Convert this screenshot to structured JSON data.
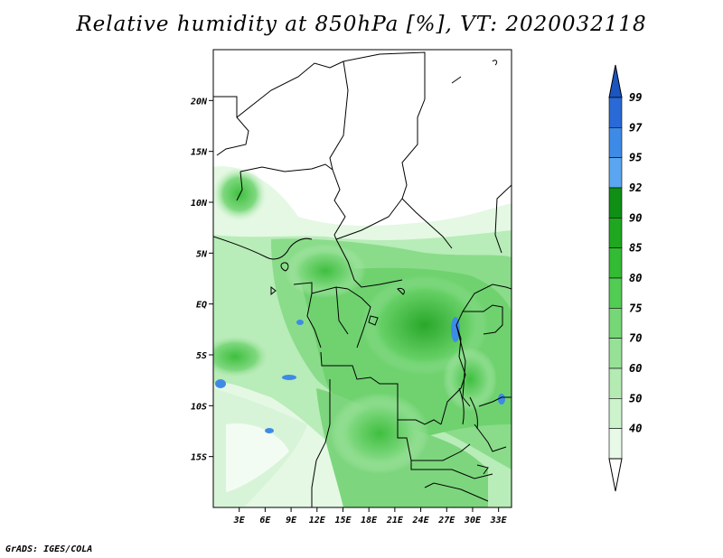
{
  "title": "Relative humidity at 850hPa [%], VT: 2020032118",
  "footer": "GrADS: IGES/COLA",
  "map": {
    "lon_range": [
      0,
      34.5
    ],
    "lat_range": [
      -20,
      25
    ],
    "lat_ticks": [
      {
        "label": "20N",
        "value": 20
      },
      {
        "label": "15N",
        "value": 15
      },
      {
        "label": "10N",
        "value": 10
      },
      {
        "label": "5N",
        "value": 5
      },
      {
        "label": "EQ",
        "value": 0
      },
      {
        "label": "5S",
        "value": -5
      },
      {
        "label": "10S",
        "value": -10
      },
      {
        "label": "15S",
        "value": -15
      }
    ],
    "lon_ticks": [
      {
        "label": "3E",
        "value": 3
      },
      {
        "label": "6E",
        "value": 6
      },
      {
        "label": "9E",
        "value": 9
      },
      {
        "label": "12E",
        "value": 12
      },
      {
        "label": "15E",
        "value": 15
      },
      {
        "label": "18E",
        "value": 18
      },
      {
        "label": "21E",
        "value": 21
      },
      {
        "label": "24E",
        "value": 24
      },
      {
        "label": "27E",
        "value": 27
      },
      {
        "label": "30E",
        "value": 30
      },
      {
        "label": "33E",
        "value": 33
      }
    ]
  },
  "colorbar": {
    "labels": [
      "99",
      "97",
      "95",
      "92",
      "90",
      "85",
      "80",
      "75",
      "70",
      "60",
      "50",
      "40"
    ],
    "colors": [
      "#2a6ad6",
      "#3d8be6",
      "#5aa6f0",
      "#0f8f14",
      "#1fa71f",
      "#33bb33",
      "#52cc52",
      "#76d776",
      "#97e197",
      "#b3ebb3",
      "#cdf3cd",
      "#e8f9e8"
    ],
    "top_arrow_color": "#1a55c0",
    "bottom_arrow_color": "#ffffff"
  }
}
